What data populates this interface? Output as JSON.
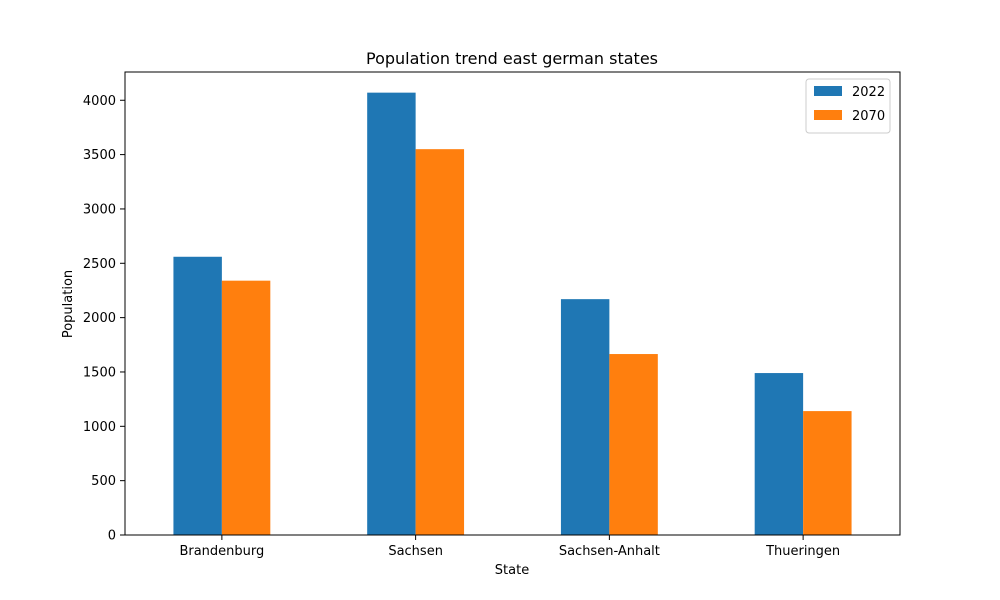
{
  "chart_data": {
    "type": "bar",
    "title": "Population trend east german states",
    "xlabel": "State",
    "ylabel": "Population",
    "categories": [
      "Brandenburg",
      "Sachsen",
      "Sachsen-Anhalt",
      "Thueringen"
    ],
    "series": [
      {
        "name": "2022",
        "color": "#1f77b4",
        "values": [
          2560,
          4070,
          2170,
          1490
        ]
      },
      {
        "name": "2070",
        "color": "#ff7f0e",
        "values": [
          2340,
          3550,
          1665,
          1140
        ]
      }
    ],
    "ylim": [
      0,
      4260
    ],
    "yticks": [
      0,
      500,
      1000,
      1500,
      2000,
      2500,
      3000,
      3500,
      4000
    ],
    "grid": false,
    "legend_position": "top-right"
  }
}
